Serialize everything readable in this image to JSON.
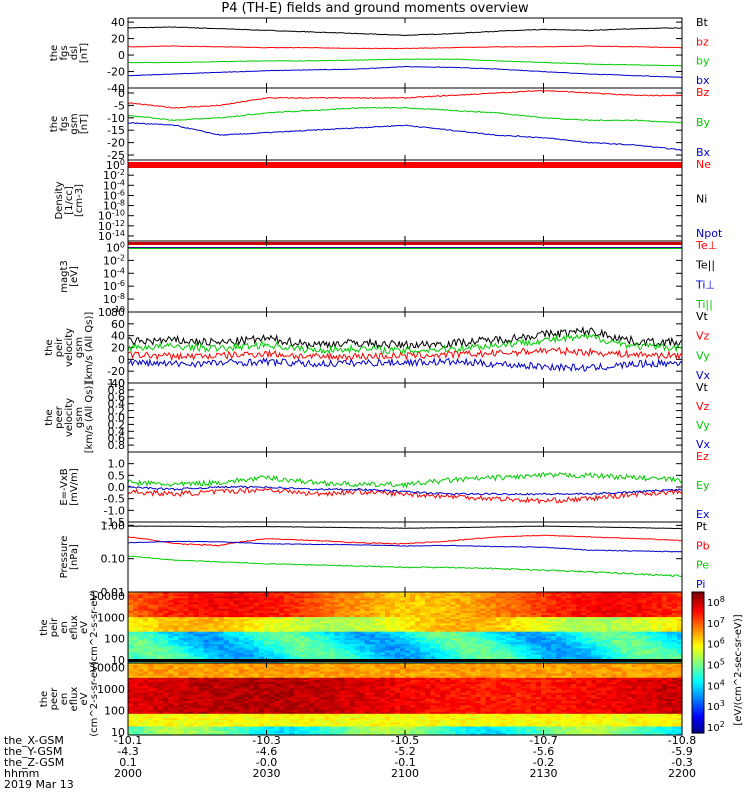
{
  "title": "P4 (TH-E) fields and ground moments overview",
  "date_label": "2019 Mar 13",
  "time_ticks": [
    {
      "hhmm": "2000",
      "x_gsm": "-10.1",
      "y_gsm": "-4.3",
      "z_gsm": "0.1",
      "frac": 0.0
    },
    {
      "hhmm": "2030",
      "x_gsm": "-10.3",
      "y_gsm": "-4.6",
      "z_gsm": "-0.0",
      "frac": 0.25
    },
    {
      "hhmm": "2100",
      "x_gsm": "-10.5",
      "y_gsm": "-5.2",
      "z_gsm": "-0.1",
      "frac": 0.5
    },
    {
      "hhmm": "2130",
      "x_gsm": "-10.7",
      "y_gsm": "-5.6",
      "z_gsm": "-0.2",
      "frac": 0.75
    },
    {
      "hhmm": "2200",
      "x_gsm": "-10.8",
      "y_gsm": "-5.9",
      "z_gsm": "-0.3",
      "frac": 1.0
    }
  ],
  "ephemeris_labels": [
    "the_X-GSM",
    "the_Y-GSM",
    "the_Z-GSM",
    "hhmm"
  ],
  "colorbar": {
    "label": "[eV/(cm^2-sec-sr-eV)]",
    "ticks": [
      "10^2",
      "10^3",
      "10^4",
      "10^5",
      "10^6",
      "10^7",
      "10^8"
    ]
  },
  "panels": [
    {
      "id": "fgs_dsl",
      "ylabel": [
        "the",
        "fgs",
        "dsl",
        "[nT]"
      ],
      "ymin": -40,
      "ymax": 45,
      "ticks": [
        "40",
        "20",
        "0",
        "-20",
        "-40"
      ],
      "tickvals": [
        40,
        20,
        0,
        -20,
        -40
      ],
      "legend": [
        {
          "t": "Bt",
          "c": "#000000"
        },
        {
          "t": "bz",
          "c": "#ff0000"
        },
        {
          "t": "by",
          "c": "#00cc00"
        },
        {
          "t": "bx",
          "c": "#0000cc"
        }
      ]
    },
    {
      "id": "fgs_gsm",
      "ylabel": [
        "the",
        "fgs",
        "gsm",
        "[nT]"
      ],
      "ymin": -27,
      "ymax": 2,
      "ticks": [
        "0",
        "-5",
        "-10",
        "-15",
        "-20",
        "-25"
      ],
      "tickvals": [
        0,
        -5,
        -10,
        -15,
        -20,
        -25
      ],
      "legend": [
        {
          "t": "Bz",
          "c": "#ff0000"
        },
        {
          "t": "By",
          "c": "#00cc00"
        },
        {
          "t": "Bx",
          "c": "#0000cc"
        }
      ]
    },
    {
      "id": "density",
      "ylabel": [
        "Density",
        "[1/cc]",
        "[cm-3]"
      ],
      "ymin": -15,
      "ymax": 1,
      "log": true,
      "ticks": [
        "10^0",
        "10^-2",
        "10^-4",
        "10^-6",
        "10^-8",
        "10^-10",
        "10^-12",
        "10^-14"
      ],
      "tickvals": [
        0,
        -2,
        -4,
        -6,
        -8,
        -10,
        -12,
        -14
      ],
      "legend": [
        {
          "t": "Ne",
          "c": "#ff0000"
        },
        {
          "t": "Ni",
          "c": "#000000"
        },
        {
          "t": "Npot",
          "c": "#0000cc"
        }
      ]
    },
    {
      "id": "temp",
      "ylabel": [
        "magt3",
        "[eV]"
      ],
      "ymin": -10,
      "ymax": 1,
      "log": true,
      "ticks": [
        "10^0",
        "10^-2",
        "10^-4",
        "10^-6",
        "10^-8",
        "10^-10"
      ],
      "tickvals": [
        0,
        -2,
        -4,
        -6,
        -8,
        -10
      ],
      "legend": [
        {
          "t": "Te⊥",
          "c": "#ff0000"
        },
        {
          "t": "Te||",
          "c": "#000000"
        },
        {
          "t": "Ti⊥",
          "c": "#0000cc"
        },
        {
          "t": "Ti||",
          "c": "#00cc00"
        }
      ]
    },
    {
      "id": "peir_v",
      "ylabel": [
        "the",
        "peir",
        "velocity",
        "gsm",
        "[km/s (All Qs)]"
      ],
      "ymin": -40,
      "ymax": 80,
      "ticks": [
        "80",
        "60",
        "40",
        "20",
        "0",
        "-20",
        "-40"
      ],
      "tickvals": [
        80,
        60,
        40,
        20,
        0,
        -20,
        -40
      ],
      "legend": [
        {
          "t": "Vt",
          "c": "#000000"
        },
        {
          "t": "Vz",
          "c": "#ff0000"
        },
        {
          "t": "Vy",
          "c": "#00cc00"
        },
        {
          "t": "Vx",
          "c": "#0000cc"
        }
      ]
    },
    {
      "id": "peer_v",
      "ylabel": [
        "the",
        "peer",
        "velocity",
        "gsm",
        "[km/s (All Qs)]"
      ],
      "ymin": 0,
      "ymax": 1,
      "ticks": [
        "1.0",
        "0.8",
        "0.6",
        "0.4",
        "0.2",
        "0.0",
        "0.2",
        "0.4",
        "0.6",
        "0.8"
      ],
      "tickvals": [
        1.0,
        0.9,
        0.8,
        0.7,
        0.6,
        0.5,
        0.4,
        0.3,
        0.2,
        0.1
      ],
      "legend": [
        {
          "t": "Vt",
          "c": "#000000"
        },
        {
          "t": "Vz",
          "c": "#ff0000"
        },
        {
          "t": "Vy",
          "c": "#00cc00"
        },
        {
          "t": "Vx",
          "c": "#0000cc"
        }
      ]
    },
    {
      "id": "efield",
      "ylabel": [
        "E=-VxB",
        "[mV/m]"
      ],
      "ymin": -1.5,
      "ymax": 1.5,
      "ticks": [
        "1.0",
        "0.5",
        "0.0",
        "-0.5",
        "-1.0",
        "-1.5"
      ],
      "tickvals": [
        1.0,
        0.5,
        0.0,
        -0.5,
        -1.0,
        -1.5
      ],
      "legend": [
        {
          "t": "Ez",
          "c": "#ff0000"
        },
        {
          "t": "Ey",
          "c": "#00cc00"
        },
        {
          "t": "Ex",
          "c": "#0000cc"
        }
      ]
    },
    {
      "id": "pressure",
      "ylabel": [
        "Pressure",
        "[nPa]"
      ],
      "ymin": -2,
      "ymax": 0.1,
      "log": true,
      "ticks": [
        "1.00",
        "0.10",
        "0.01"
      ],
      "tickvals": [
        0,
        -1,
        -2
      ],
      "legend": [
        {
          "t": "Pt",
          "c": "#000000"
        },
        {
          "t": "Pb",
          "c": "#ff0000"
        },
        {
          "t": "Pe",
          "c": "#00cc00"
        },
        {
          "t": "Pi",
          "c": "#0000cc"
        }
      ]
    },
    {
      "id": "peir_en",
      "ylabel": [
        "the",
        "peir",
        "en",
        "eflux",
        "eV",
        "(cm^2-s-sr-eV)"
      ],
      "ymin": 0.85,
      "ymax": 4.2,
      "log": true,
      "ticks": [
        "10000",
        "1000",
        "100",
        "10"
      ],
      "tickvals": [
        4,
        3,
        2,
        1
      ]
    },
    {
      "id": "peer_en",
      "ylabel": [
        "the",
        "peer",
        "en",
        "eflux",
        "eV",
        "(cm^2-s-sr-eV)"
      ],
      "ymin": 0.85,
      "ymax": 4.2,
      "log": true,
      "ticks": [
        "10000",
        "1000",
        "100",
        "10"
      ],
      "tickvals": [
        4,
        3,
        2,
        1
      ]
    }
  ],
  "chart_data": {
    "type": "line",
    "title": "P4 (TH-E) fields and ground moments overview",
    "x_range": [
      "2000",
      "2200"
    ],
    "x": [
      "2000",
      "2010",
      "2020",
      "2030",
      "2040",
      "2050",
      "2100",
      "2110",
      "2120",
      "2130",
      "2140",
      "2150",
      "2200"
    ],
    "fgs_dsl": {
      "ylabel": "the fgs dsl [nT]",
      "ylim": [
        -40,
        45
      ],
      "series": [
        {
          "name": "Bt",
          "values": [
            33,
            34,
            32,
            30,
            28,
            26,
            24,
            26,
            29,
            31,
            30,
            32,
            33
          ]
        },
        {
          "name": "bz",
          "values": [
            10,
            11,
            10,
            9,
            9,
            8,
            8,
            9,
            10,
            10,
            11,
            10,
            9
          ]
        },
        {
          "name": "by",
          "values": [
            -9,
            -9,
            -8,
            -7,
            -7,
            -6,
            -5,
            -5,
            -7,
            -9,
            -11,
            -12,
            -13
          ]
        },
        {
          "name": "bx",
          "values": [
            -25,
            -23,
            -21,
            -19,
            -18,
            -17,
            -14,
            -15,
            -17,
            -20,
            -23,
            -25,
            -27
          ]
        }
      ]
    },
    "fgs_gsm": {
      "ylabel": "the fgs gsm [nT]",
      "ylim": [
        -27,
        2
      ],
      "series": [
        {
          "name": "Bz",
          "values": [
            -4,
            -6,
            -5,
            -2,
            -2,
            -2,
            -2,
            -1,
            0,
            1,
            0,
            -1,
            -1
          ]
        },
        {
          "name": "By",
          "values": [
            -9,
            -11,
            -10,
            -8,
            -7,
            -6,
            -6,
            -7,
            -8,
            -10,
            -11,
            -11,
            -12
          ]
        },
        {
          "name": "Bx",
          "values": [
            -12,
            -13,
            -17,
            -16,
            -15,
            -14,
            -13,
            -15,
            -17,
            -18,
            -20,
            -21,
            -23
          ]
        }
      ]
    },
    "density": {
      "ylabel": "Density [1/cc] [cm-3]",
      "log_range": [
        "1e-15",
        "10"
      ],
      "series": [
        {
          "name": "Ne",
          "values": [
            1,
            1,
            1,
            1,
            1,
            1,
            1,
            1,
            1,
            1,
            1,
            1,
            1
          ]
        },
        {
          "name": "Ni",
          "values": [
            0.5,
            0.5,
            0.5,
            0.5,
            0.5,
            0.5,
            0.5,
            0.5,
            0.5,
            0.5,
            0.5,
            0.5,
            0.5
          ]
        },
        {
          "name": "Npot",
          "values": [
            0.4,
            0.4,
            0.4,
            0.4,
            0.4,
            0.4,
            0.4,
            0.4,
            0.4,
            0.4,
            0.4,
            0.4,
            0.4
          ]
        }
      ]
    },
    "temperature": {
      "ylabel": "magt3 [eV]",
      "log_range": [
        "1e-10",
        "10"
      ],
      "series": [
        {
          "name": "Te⊥",
          "values": [
            1,
            1,
            1,
            1,
            1,
            1,
            1,
            1,
            1,
            1,
            1,
            1,
            1
          ]
        },
        {
          "name": "Te||",
          "values": [
            0.8,
            0.8,
            0.8,
            0.8,
            0.8,
            0.8,
            0.8,
            0.8,
            0.8,
            0.8,
            0.8,
            0.8,
            0.8
          ]
        },
        {
          "name": "Ti⊥",
          "values": [
            0.9,
            0.9,
            0.9,
            0.9,
            0.9,
            0.9,
            0.9,
            0.9,
            0.9,
            0.9,
            0.9,
            0.9,
            0.9
          ]
        },
        {
          "name": "Ti||",
          "values": [
            0.7,
            0.7,
            0.7,
            0.7,
            0.7,
            0.7,
            0.7,
            0.7,
            0.7,
            0.7,
            0.7,
            0.7,
            0.7
          ]
        }
      ]
    },
    "peir_velocity": {
      "ylabel": "the peir velocity gsm [km/s (All Qs)]",
      "ylim": [
        -40,
        80
      ],
      "series": [
        {
          "name": "Vt",
          "values": [
            30,
            32,
            28,
            35,
            25,
            28,
            24,
            27,
            33,
            42,
            48,
            30,
            28
          ]
        },
        {
          "name": "Vz",
          "values": [
            8,
            5,
            6,
            10,
            4,
            5,
            6,
            8,
            10,
            15,
            12,
            8,
            6
          ]
        },
        {
          "name": "Vy",
          "values": [
            20,
            22,
            18,
            25,
            15,
            18,
            14,
            18,
            24,
            32,
            38,
            22,
            20
          ]
        },
        {
          "name": "Vx",
          "values": [
            -5,
            -8,
            -6,
            -4,
            -8,
            -6,
            -5,
            -4,
            -8,
            -12,
            -15,
            -8,
            -6
          ]
        }
      ]
    },
    "efield": {
      "ylabel": "E=-VxB [mV/m]",
      "ylim": [
        -1.5,
        1.5
      ],
      "series": [
        {
          "name": "Ez",
          "values": [
            -0.2,
            -0.3,
            -0.2,
            -0.1,
            -0.3,
            -0.2,
            -0.3,
            -0.4,
            -0.5,
            -0.6,
            -0.5,
            -0.3,
            -0.2
          ]
        },
        {
          "name": "Ey",
          "values": [
            0.2,
            0.1,
            0.2,
            0.4,
            0.2,
            0.1,
            0.1,
            0.3,
            0.4,
            0.5,
            0.5,
            0.4,
            0.3
          ]
        },
        {
          "name": "Ex",
          "values": [
            0.0,
            -0.1,
            0.0,
            0.0,
            -0.1,
            -0.1,
            -0.2,
            -0.3,
            -0.3,
            -0.3,
            -0.3,
            -0.2,
            -0.1
          ]
        }
      ]
    },
    "pressure": {
      "ylabel": "Pressure [nPa]",
      "log_range": [
        "0.01",
        "1.2"
      ],
      "series": [
        {
          "name": "Pt",
          "values": [
            0.95,
            0.95,
            0.9,
            0.92,
            0.88,
            0.85,
            0.82,
            0.85,
            0.9,
            0.95,
            0.9,
            0.85,
            0.8
          ]
        },
        {
          "name": "Pb",
          "values": [
            0.45,
            0.28,
            0.25,
            0.4,
            0.35,
            0.3,
            0.28,
            0.34,
            0.45,
            0.5,
            0.45,
            0.4,
            0.35
          ]
        },
        {
          "name": "Pe",
          "values": [
            0.12,
            0.09,
            0.08,
            0.07,
            0.065,
            0.06,
            0.055,
            0.055,
            0.05,
            0.045,
            0.04,
            0.035,
            0.03
          ]
        },
        {
          "name": "Pi",
          "values": [
            0.3,
            0.33,
            0.32,
            0.28,
            0.27,
            0.26,
            0.24,
            0.25,
            0.23,
            0.22,
            0.18,
            0.17,
            0.16
          ]
        }
      ]
    }
  }
}
